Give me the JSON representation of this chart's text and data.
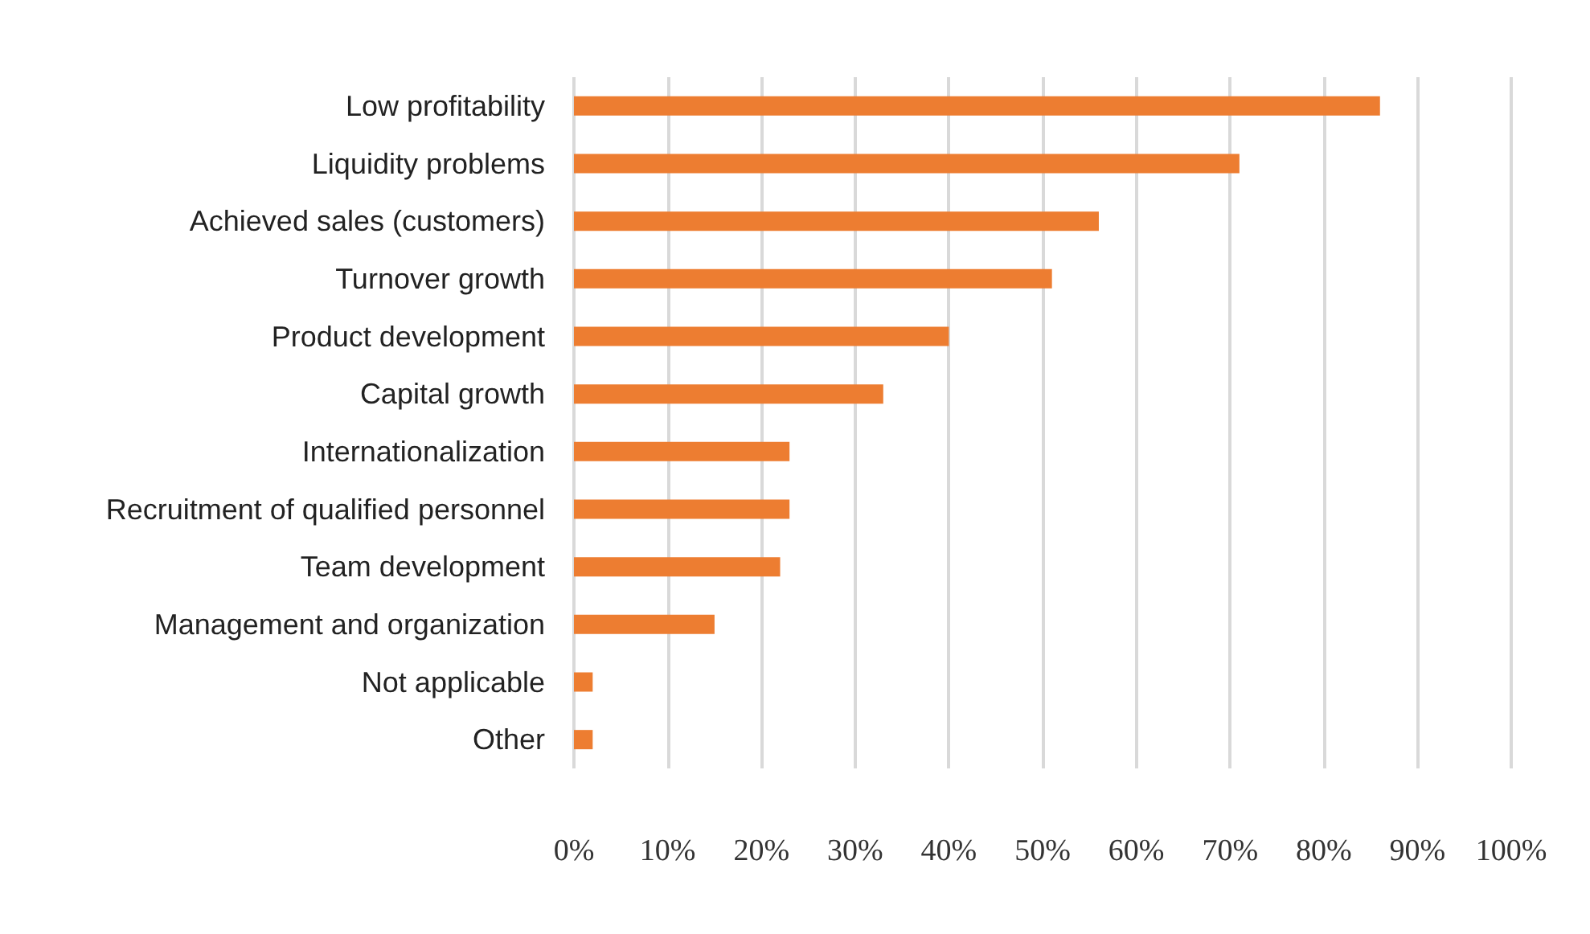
{
  "chart_data": {
    "type": "bar",
    "orientation": "horizontal",
    "categories": [
      "Low profitability",
      "Liquidity problems",
      "Achieved sales (customers)",
      "Turnover growth",
      "Product development",
      "Capital growth",
      "Internationalization",
      "Recruitment of qualified personnel",
      "Team development",
      "Management and organization",
      "Not applicable",
      "Other"
    ],
    "values": [
      86,
      71,
      56,
      51,
      40,
      33,
      23,
      23,
      22,
      15,
      2,
      2
    ],
    "color": "#ed7d31",
    "xlim": [
      0,
      100
    ],
    "xticks": [
      {
        "value": 0,
        "label": "0%"
      },
      {
        "value": 10,
        "label": "10%"
      },
      {
        "value": 20,
        "label": "20%"
      },
      {
        "value": 30,
        "label": "30%"
      },
      {
        "value": 40,
        "label": "40%"
      },
      {
        "value": 50,
        "label": "50%"
      },
      {
        "value": 60,
        "label": "60%"
      },
      {
        "value": 70,
        "label": "70%"
      },
      {
        "value": 80,
        "label": "80%"
      },
      {
        "value": 90,
        "label": "90%"
      },
      {
        "value": 100,
        "label": "100%"
      }
    ],
    "grid": "x"
  }
}
